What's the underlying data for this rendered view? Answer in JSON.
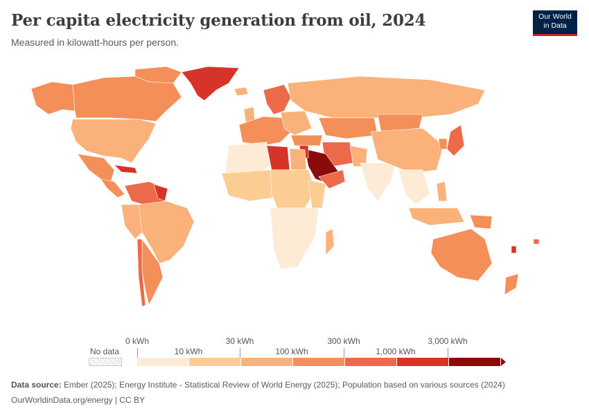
{
  "header": {
    "title": "Per capita electricity generation from oil, 2024",
    "subtitle": "Measured in kilowatt-hours per person."
  },
  "logo": {
    "line1": "Our World",
    "line2": "in Data"
  },
  "legend": {
    "no_data_label": "No data",
    "upper_ticks": [
      "0 kWh",
      "30 kWh",
      "300 kWh",
      "3,000 kWh"
    ],
    "lower_ticks": [
      "10 kWh",
      "100 kWh",
      "1,000 kWh"
    ],
    "colors": [
      "#fdebd5",
      "#fccd92",
      "#fbb27a",
      "#f58f59",
      "#ec6a4a",
      "#d73429",
      "#8b0a0a"
    ]
  },
  "footer": {
    "source_label": "Data source:",
    "source_text": "Ember (2025); Energy Institute - Statistical Review of World Energy (2025); Population based on various sources (2024)",
    "url_text": "OurWorldinData.org/energy | CC BY"
  }
}
